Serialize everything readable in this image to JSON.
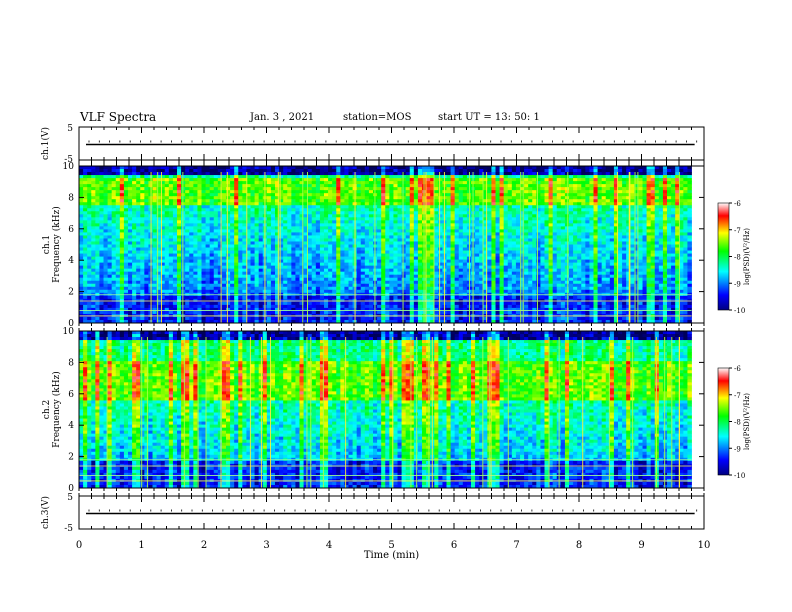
{
  "header": {
    "title": "VLF Spectra",
    "date": "Jan. 3 , 2021",
    "station": "station=MOS",
    "start": "start UT = 13: 50: 1"
  },
  "chart_data": [
    {
      "type": "line",
      "panel": "ch1-waveform",
      "ylabel": "ch.1(V)",
      "ylim": [
        -5,
        5
      ],
      "yticks": [
        "5",
        "-5"
      ],
      "xlim": [
        0,
        10
      ],
      "series": [
        {
          "values_description": "flat trace near 0 V",
          "level": 0
        }
      ]
    },
    {
      "type": "heatmap",
      "panel": "ch1-spectrogram",
      "ylabel": "ch.1\nFrequency (kHz)",
      "ylim": [
        0,
        10
      ],
      "yticks": [
        0,
        2,
        4,
        6,
        8,
        10
      ],
      "xlim": [
        0,
        9.8
      ],
      "colorbar": {
        "label": "log(PSD)(V²/Hz)",
        "ticks": [
          -6,
          -7,
          -8,
          -9,
          -10
        ],
        "range": [
          -10,
          -6
        ]
      },
      "bands": {
        "strong_kHz": [
          7.5,
          9.3
        ],
        "quiet_below_kHz": 1.8
      }
    },
    {
      "type": "heatmap",
      "panel": "ch2-spectrogram",
      "ylabel": "ch.2\nFrequency (kHz)",
      "ylim": [
        0,
        10
      ],
      "yticks": [
        0,
        2,
        4,
        6,
        8,
        10
      ],
      "xlim": [
        0,
        9.8
      ],
      "colorbar": {
        "label": "log(PSD)(V²/Hz)",
        "ticks": [
          -6,
          -7,
          -8,
          -9,
          -10
        ],
        "range": [
          -10,
          -6
        ]
      },
      "bands": {
        "strong_kHz": [
          5.5,
          8.0
        ],
        "quiet_below_kHz": 1.8
      }
    },
    {
      "type": "line",
      "panel": "ch3-waveform",
      "ylabel": "ch.3(V)",
      "ylim": [
        -5,
        5
      ],
      "yticks": [
        "5",
        "-5"
      ],
      "xlim": [
        0,
        10
      ],
      "xlabel": "Time (min)",
      "xticks": [
        0,
        1,
        2,
        3,
        4,
        5,
        6,
        7,
        8,
        9,
        10
      ],
      "series": [
        {
          "values_description": "flat trace near 0 V",
          "level": 0
        }
      ]
    }
  ]
}
